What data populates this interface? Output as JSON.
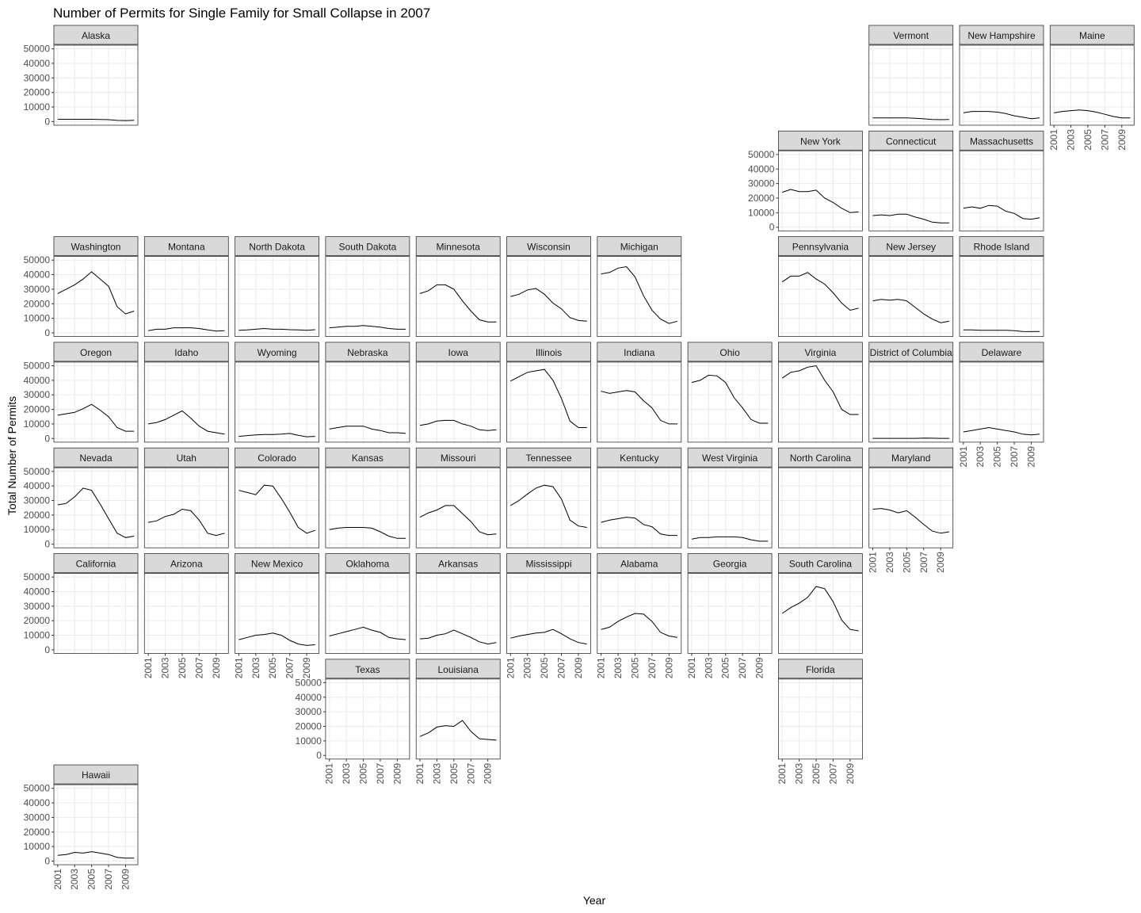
{
  "chart_data": {
    "type": "line",
    "title": "Number of Permits for Single Family for Small Collapse in 2007",
    "x_label": "Year",
    "y_label": "Total Number of Permits",
    "x": [
      2001,
      2002,
      2003,
      2004,
      2005,
      2006,
      2007,
      2008,
      2009,
      2010
    ],
    "xlim": [
      2000.55,
      2010.45
    ],
    "xticks": [
      2001,
      2003,
      2005,
      2007,
      2009
    ],
    "ylim": [
      -2500,
      52500
    ],
    "yticks": [
      0,
      10000,
      20000,
      30000,
      40000,
      50000
    ],
    "grid": true,
    "color": "#000000",
    "series": [
      {
        "name": "Alaska",
        "values": [
          1600,
          1600,
          1600,
          1600,
          1600,
          1500,
          1300,
          800,
          700,
          900
        ]
      },
      {
        "name": "Vermont",
        "values": [
          2500,
          2500,
          2500,
          2500,
          2500,
          2300,
          1900,
          1400,
          1300,
          1400
        ]
      },
      {
        "name": "New Hampshire",
        "values": [
          6000,
          7000,
          7000,
          7000,
          6500,
          5500,
          4000,
          3000,
          2000,
          2500
        ]
      },
      {
        "name": "Maine",
        "values": [
          6000,
          7000,
          7500,
          8000,
          7500,
          6500,
          5000,
          3500,
          2500,
          2500
        ]
      },
      {
        "name": "New York",
        "values": [
          24000,
          26000,
          24500,
          24500,
          25500,
          20000,
          17000,
          13000,
          10000,
          10500
        ]
      },
      {
        "name": "Connecticut",
        "values": [
          8000,
          8500,
          8000,
          9000,
          9000,
          7000,
          5500,
          3500,
          3000,
          3000
        ]
      },
      {
        "name": "Massachusetts",
        "values": [
          13000,
          14000,
          13000,
          15000,
          14500,
          11000,
          9500,
          6000,
          5500,
          6500
        ]
      },
      {
        "name": "Washington",
        "values": [
          27000,
          30000,
          33000,
          37000,
          42000,
          37000,
          32000,
          18000,
          13000,
          15000
        ]
      },
      {
        "name": "Montana",
        "values": [
          1500,
          2500,
          2500,
          3500,
          3500,
          3500,
          3000,
          2000,
          1200,
          1500
        ]
      },
      {
        "name": "North Dakota",
        "values": [
          1800,
          2000,
          2500,
          3000,
          2500,
          2500,
          2200,
          2000,
          1800,
          2200
        ]
      },
      {
        "name": "South Dakota",
        "values": [
          3500,
          4000,
          4500,
          4500,
          5000,
          4500,
          4000,
          3000,
          2500,
          2500
        ]
      },
      {
        "name": "Minnesota",
        "values": [
          27000,
          29000,
          33000,
          33000,
          30000,
          22000,
          15000,
          9000,
          7500,
          7500
        ]
      },
      {
        "name": "Wisconsin",
        "values": [
          25000,
          26500,
          29500,
          30500,
          26500,
          20500,
          16500,
          10500,
          8500,
          8000
        ]
      },
      {
        "name": "Michigan",
        "values": [
          40500,
          41500,
          44500,
          45500,
          38500,
          25500,
          15500,
          9500,
          6500,
          8000
        ]
      },
      {
        "name": "Pennsylvania",
        "values": [
          35000,
          39000,
          39000,
          41500,
          37000,
          33500,
          27500,
          20500,
          15500,
          17000
        ]
      },
      {
        "name": "New Jersey",
        "values": [
          22000,
          23000,
          22500,
          23000,
          22000,
          17500,
          13000,
          9500,
          7000,
          8000
        ]
      },
      {
        "name": "Rhode Island",
        "values": [
          2000,
          2000,
          1800,
          1800,
          1800,
          1800,
          1500,
          1000,
          900,
          1000
        ]
      },
      {
        "name": "Oregon",
        "values": [
          16000,
          17000,
          18000,
          20500,
          23500,
          19500,
          15000,
          7500,
          5000,
          5000
        ]
      },
      {
        "name": "Idaho",
        "values": [
          10000,
          11000,
          13000,
          16000,
          19000,
          14000,
          8500,
          5000,
          4000,
          3000
        ]
      },
      {
        "name": "Wyoming",
        "values": [
          1500,
          2000,
          2500,
          2800,
          2800,
          3000,
          3500,
          2200,
          1200,
          1500
        ]
      },
      {
        "name": "Nebraska",
        "values": [
          6500,
          7500,
          8500,
          8500,
          8500,
          6500,
          5500,
          4000,
          4000,
          3500
        ]
      },
      {
        "name": "Iowa",
        "values": [
          9000,
          10000,
          12000,
          12500,
          12500,
          10000,
          8500,
          6000,
          5500,
          6000
        ]
      },
      {
        "name": "Illinois",
        "values": [
          39500,
          42500,
          45500,
          46500,
          47500,
          40000,
          27500,
          12000,
          7500,
          7500
        ]
      },
      {
        "name": "Indiana",
        "values": [
          32500,
          31000,
          32000,
          33000,
          32000,
          26000,
          21000,
          12500,
          10000,
          10000
        ]
      },
      {
        "name": "Ohio",
        "values": [
          38500,
          40000,
          43500,
          43000,
          38500,
          28000,
          21000,
          13000,
          10500,
          10500
        ]
      },
      {
        "name": "Virginia",
        "values": [
          41500,
          45500,
          46500,
          49000,
          50000,
          40000,
          32000,
          20000,
          16500,
          16500
        ]
      },
      {
        "name": "District of Columbia",
        "values": [
          100,
          100,
          100,
          100,
          100,
          100,
          300,
          200,
          100,
          100
        ]
      },
      {
        "name": "Delaware",
        "values": [
          4500,
          5500,
          6500,
          7500,
          6500,
          5500,
          4500,
          3000,
          2500,
          3000
        ]
      },
      {
        "name": "Nevada",
        "values": [
          27000,
          28000,
          32500,
          38500,
          37000,
          27500,
          17500,
          7500,
          4500,
          5500
        ]
      },
      {
        "name": "Utah",
        "values": [
          15000,
          16000,
          19000,
          20500,
          24000,
          23000,
          16500,
          7500,
          6000,
          7500
        ]
      },
      {
        "name": "Colorado",
        "values": [
          37000,
          35500,
          34000,
          40500,
          40000,
          31500,
          22000,
          11500,
          7500,
          9500
        ]
      },
      {
        "name": "Kansas",
        "values": [
          10000,
          11000,
          11500,
          11500,
          11500,
          11000,
          8500,
          5500,
          4000,
          4000
        ]
      },
      {
        "name": "Missouri",
        "values": [
          18500,
          21500,
          23500,
          26500,
          26500,
          21000,
          15500,
          8500,
          6500,
          7000
        ]
      },
      {
        "name": "Tennessee",
        "values": [
          26500,
          30000,
          34500,
          38500,
          40500,
          39500,
          31000,
          16500,
          12500,
          11500
        ]
      },
      {
        "name": "Kentucky",
        "values": [
          15000,
          16500,
          17500,
          18500,
          18000,
          13500,
          12000,
          7000,
          6000,
          6000
        ]
      },
      {
        "name": "West Virginia",
        "values": [
          3500,
          4500,
          4500,
          5000,
          5000,
          5000,
          4500,
          3000,
          2000,
          2000
        ]
      },
      {
        "name": "North Carolina",
        "values": [
          null,
          null,
          null,
          null,
          null,
          null,
          null,
          null,
          null,
          null
        ]
      },
      {
        "name": "Maryland",
        "values": [
          24000,
          24500,
          23500,
          21500,
          23000,
          18500,
          13500,
          9000,
          7500,
          8500
        ]
      },
      {
        "name": "California",
        "values": [
          null,
          null,
          null,
          null,
          null,
          null,
          null,
          null,
          null,
          null
        ]
      },
      {
        "name": "Arizona",
        "values": [
          null,
          null,
          null,
          null,
          null,
          null,
          null,
          null,
          null,
          null
        ]
      },
      {
        "name": "New Mexico",
        "values": [
          7000,
          8500,
          10000,
          10500,
          11500,
          10000,
          6500,
          4000,
          3000,
          3500
        ]
      },
      {
        "name": "Oklahoma",
        "values": [
          9500,
          11000,
          12500,
          14000,
          15500,
          13500,
          12000,
          8500,
          7500,
          7000
        ]
      },
      {
        "name": "Arkansas",
        "values": [
          7500,
          8000,
          10000,
          11000,
          13500,
          11000,
          8500,
          5500,
          4000,
          5000
        ]
      },
      {
        "name": "Mississippi",
        "values": [
          8000,
          9500,
          10500,
          11500,
          12000,
          14000,
          11000,
          7500,
          5000,
          4000
        ]
      },
      {
        "name": "Alabama",
        "values": [
          14000,
          15500,
          19500,
          22500,
          25000,
          24500,
          19500,
          12000,
          9500,
          8500
        ]
      },
      {
        "name": "Georgia",
        "values": [
          null,
          null,
          null,
          null,
          null,
          null,
          null,
          null,
          null,
          null
        ]
      },
      {
        "name": "South Carolina",
        "values": [
          25000,
          29000,
          32000,
          36000,
          43500,
          42000,
          33000,
          20500,
          14000,
          13000
        ]
      },
      {
        "name": "Texas",
        "values": [
          null,
          null,
          null,
          null,
          null,
          null,
          null,
          null,
          null,
          null
        ]
      },
      {
        "name": "Louisiana",
        "values": [
          13000,
          15500,
          19500,
          20500,
          20000,
          24000,
          16500,
          11500,
          11000,
          10500
        ]
      },
      {
        "name": "Florida",
        "values": [
          null,
          null,
          null,
          null,
          null,
          null,
          null,
          null,
          null,
          null
        ]
      },
      {
        "name": "Hawaii",
        "values": [
          4000,
          4500,
          6000,
          5500,
          6500,
          5500,
          4500,
          2500,
          2000,
          2000
        ]
      }
    ]
  }
}
